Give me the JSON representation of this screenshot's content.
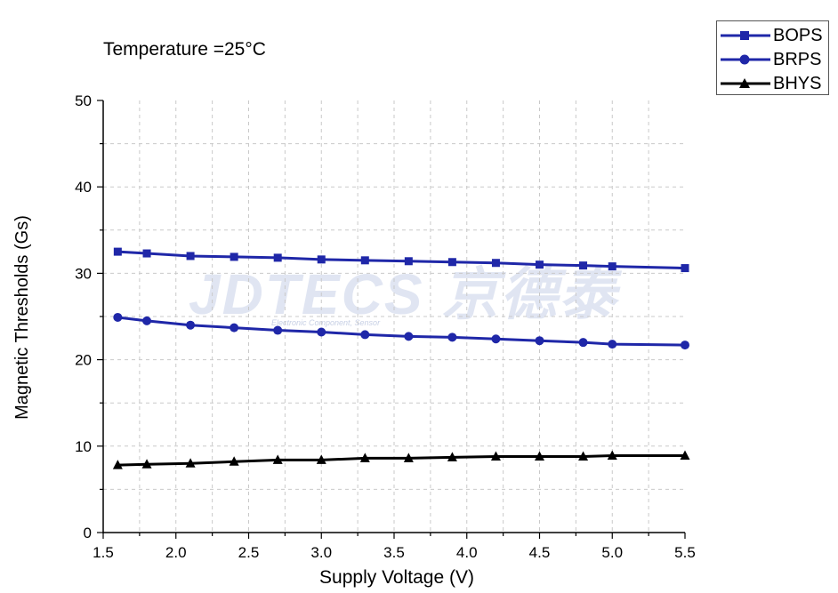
{
  "chart_data": {
    "type": "line",
    "annotation": "Temperature =25°C",
    "xlabel": "Supply Voltage (V)",
    "ylabel": "Magnetic Thresholds (Gs)",
    "xlim": [
      1.5,
      5.5
    ],
    "ylim": [
      0,
      50
    ],
    "xticks": [
      "1.5",
      "2.0",
      "2.5",
      "3.0",
      "3.5",
      "4.0",
      "4.5",
      "5.0",
      "5.5"
    ],
    "yticks": [
      "0",
      "10",
      "20",
      "30",
      "40",
      "50"
    ],
    "grid": true,
    "legend_position": "top-right",
    "x": [
      1.6,
      1.8,
      2.1,
      2.4,
      2.7,
      3.0,
      3.3,
      3.6,
      3.9,
      4.2,
      4.5,
      4.8,
      5.0,
      5.5
    ],
    "series": [
      {
        "name": "BOPS",
        "marker": "square",
        "color": "#1f27a8",
        "values": [
          32.5,
          32.3,
          32.0,
          31.9,
          31.8,
          31.6,
          31.5,
          31.4,
          31.3,
          31.2,
          31.0,
          30.9,
          30.8,
          30.6
        ]
      },
      {
        "name": "BRPS",
        "marker": "circle",
        "color": "#1f27a8",
        "values": [
          24.9,
          24.5,
          24.0,
          23.7,
          23.4,
          23.2,
          22.9,
          22.7,
          22.6,
          22.4,
          22.2,
          22.0,
          21.8,
          21.7
        ]
      },
      {
        "name": "BHYS",
        "marker": "triangle",
        "color": "#000000",
        "values": [
          7.8,
          7.9,
          8.0,
          8.2,
          8.4,
          8.4,
          8.6,
          8.6,
          8.7,
          8.8,
          8.8,
          8.8,
          8.9,
          8.9
        ]
      }
    ]
  },
  "watermark": {
    "brand": "JDTECS 京德泰",
    "tagline": "Electronic Component, Sensor"
  }
}
